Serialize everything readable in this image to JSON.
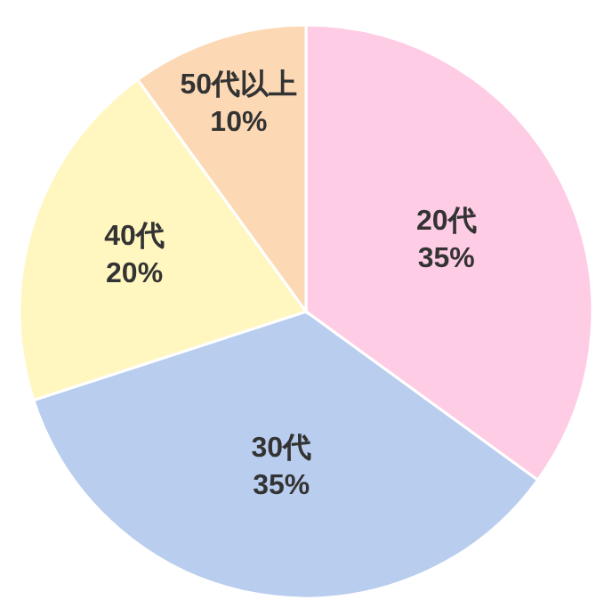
{
  "chart_data": {
    "type": "pie",
    "categories": [
      "20代",
      "30代",
      "40代",
      "50代以上"
    ],
    "values": [
      35,
      35,
      20,
      10
    ],
    "value_labels": [
      "35%",
      "35%",
      "20%",
      "10%"
    ],
    "colors": [
      "#ffcce6",
      "#b9cdee",
      "#fff6c0",
      "#fcd9b4"
    ]
  }
}
